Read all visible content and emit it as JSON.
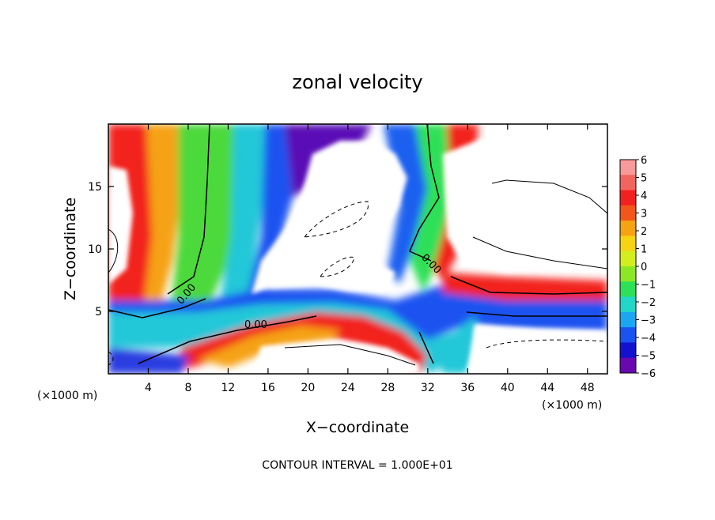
{
  "chart_data": {
    "type": "heatmap",
    "title": "zonal velocity",
    "xlabel": "X−coordinate",
    "ylabel": "Z−coordinate",
    "x_unit_label": "(×1000 m)",
    "x_unit_label_right": "(×1000 m)",
    "xlim": [
      0,
      50
    ],
    "ylim": [
      0,
      20
    ],
    "x_ticks": [
      4,
      8,
      12,
      16,
      20,
      24,
      28,
      32,
      36,
      40,
      44,
      48
    ],
    "y_ticks": [
      5,
      10,
      15
    ],
    "colorbar": {
      "ticks": [
        "6",
        "5",
        "4",
        "3",
        "2",
        "1",
        "0",
        "−1",
        "−2",
        "−3",
        "−4",
        "−5",
        "−6"
      ],
      "range": [
        -6,
        6
      ],
      "colors": [
        "#f79a9a",
        "#f2655f",
        "#f2211f",
        "#f2561c",
        "#f5a213",
        "#f7d411",
        "#d2ee1e",
        "#8ce825",
        "#2ee058",
        "#22d6c8",
        "#1ca6f2",
        "#1a53f0",
        "#1410d0",
        "#6a08b0"
      ]
    },
    "contour_labels": [
      "0.00",
      "0.00",
      "0.00"
    ],
    "footnote": "CONTOUR INTERVAL = 1.000E+01"
  }
}
